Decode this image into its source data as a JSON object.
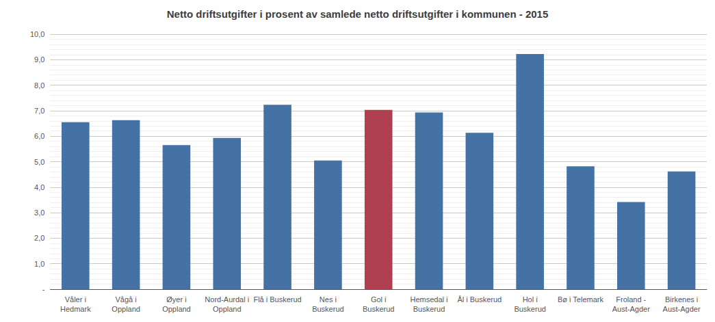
{
  "chart_data": {
    "type": "bar",
    "title": "Netto driftsutgifter i prosent av samlede netto driftsutgifter i kommunen - 2015",
    "categories": [
      "Våler i\nHedmark",
      "Vågå i\nOppland",
      "Øyer i\nOppland",
      "Nord-Aurdal i\nOppland",
      "Flå i Buskerud",
      "Nes i\nBuskerud",
      "Gol i\nBuskerud",
      "Hemsedal i\nBuskerud",
      "Ål i Buskerud",
      "Hol i\nBuskerud",
      "Bø i Telemark",
      "Froland -\nAust-Agder",
      "Birkenes i\nAust-Agder"
    ],
    "values": [
      6.55,
      6.63,
      5.65,
      5.93,
      7.23,
      5.05,
      7.03,
      6.93,
      6.13,
      9.22,
      4.82,
      3.42,
      4.62
    ],
    "colors": [
      "#4472a4",
      "#4472a4",
      "#4472a4",
      "#4472a4",
      "#4472a4",
      "#4472a4",
      "#b04050",
      "#4472a4",
      "#4472a4",
      "#4472a4",
      "#4472a4",
      "#4472a4",
      "#4472a4"
    ],
    "ylim": [
      0,
      10.0
    ],
    "yticks": [
      {
        "value": 0,
        "label": "-"
      },
      {
        "value": 1.0,
        "label": "1,0"
      },
      {
        "value": 2.0,
        "label": "2,0"
      },
      {
        "value": 3.0,
        "label": "3,0"
      },
      {
        "value": 4.0,
        "label": "4,0"
      },
      {
        "value": 5.0,
        "label": "5,0"
      },
      {
        "value": 6.0,
        "label": "6,0"
      },
      {
        "value": 7.0,
        "label": "7,0"
      },
      {
        "value": 8.0,
        "label": "8,0"
      },
      {
        "value": 9.0,
        "label": "9,0"
      },
      {
        "value": 10.0,
        "label": "10,0"
      }
    ],
    "grid": true
  }
}
